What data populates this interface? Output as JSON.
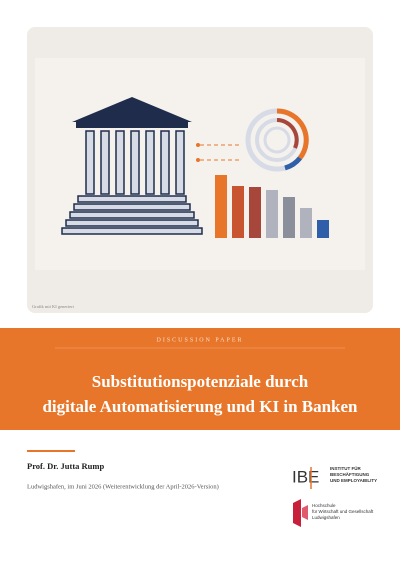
{
  "image_caption": "Grafik mit KI generiert",
  "label": "DISCUSSION PAPER",
  "title": [
    "Substitutionspotenziale durch",
    "digitale Automatisierung und KI in Banken"
  ],
  "author": "Prof. Dr. Jutta Rump",
  "place_date": "Ludwigshafen, im Juni 2026 (Weiterentwicklung der April-2026-Version)",
  "logos": {
    "ibe": {
      "mark": "IBE",
      "name": [
        "INSTITUT FÜR",
        "BESCHÄFTIGUNG",
        "UND EMPLOYABILITY"
      ]
    },
    "hochschule": [
      "Hochschule",
      "für Wirtschaft und Gesellschaft",
      "Ludwigshafen"
    ]
  }
}
